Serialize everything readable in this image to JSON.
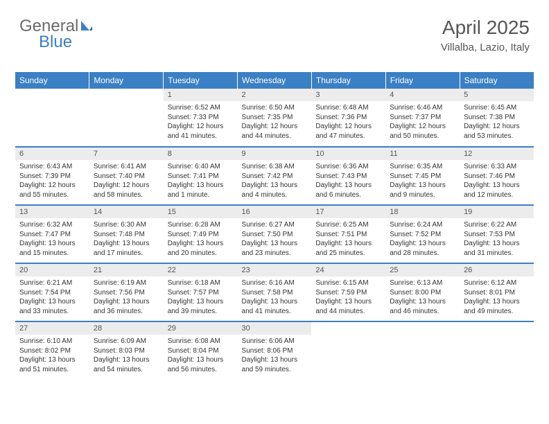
{
  "logo": {
    "text1": "General",
    "text2": "Blue"
  },
  "header": {
    "month": "April 2025",
    "location": "Villalba, Lazio, Italy"
  },
  "colors": {
    "header_bg": "#3b7fc4",
    "header_text": "#ffffff",
    "daynum_bg": "#ececec",
    "border": "#3b7fc4",
    "logo_gray": "#6b6b6b",
    "logo_blue": "#3b7fc4"
  },
  "dayNames": [
    "Sunday",
    "Monday",
    "Tuesday",
    "Wednesday",
    "Thursday",
    "Friday",
    "Saturday"
  ],
  "weeks": [
    [
      null,
      null,
      {
        "n": "1",
        "sr": "6:52 AM",
        "ss": "7:33 PM",
        "dl": "12 hours and 41 minutes."
      },
      {
        "n": "2",
        "sr": "6:50 AM",
        "ss": "7:35 PM",
        "dl": "12 hours and 44 minutes."
      },
      {
        "n": "3",
        "sr": "6:48 AM",
        "ss": "7:36 PM",
        "dl": "12 hours and 47 minutes."
      },
      {
        "n": "4",
        "sr": "6:46 AM",
        "ss": "7:37 PM",
        "dl": "12 hours and 50 minutes."
      },
      {
        "n": "5",
        "sr": "6:45 AM",
        "ss": "7:38 PM",
        "dl": "12 hours and 53 minutes."
      }
    ],
    [
      {
        "n": "6",
        "sr": "6:43 AM",
        "ss": "7:39 PM",
        "dl": "12 hours and 55 minutes."
      },
      {
        "n": "7",
        "sr": "6:41 AM",
        "ss": "7:40 PM",
        "dl": "12 hours and 58 minutes."
      },
      {
        "n": "8",
        "sr": "6:40 AM",
        "ss": "7:41 PM",
        "dl": "13 hours and 1 minute."
      },
      {
        "n": "9",
        "sr": "6:38 AM",
        "ss": "7:42 PM",
        "dl": "13 hours and 4 minutes."
      },
      {
        "n": "10",
        "sr": "6:36 AM",
        "ss": "7:43 PM",
        "dl": "13 hours and 6 minutes."
      },
      {
        "n": "11",
        "sr": "6:35 AM",
        "ss": "7:45 PM",
        "dl": "13 hours and 9 minutes."
      },
      {
        "n": "12",
        "sr": "6:33 AM",
        "ss": "7:46 PM",
        "dl": "13 hours and 12 minutes."
      }
    ],
    [
      {
        "n": "13",
        "sr": "6:32 AM",
        "ss": "7:47 PM",
        "dl": "13 hours and 15 minutes."
      },
      {
        "n": "14",
        "sr": "6:30 AM",
        "ss": "7:48 PM",
        "dl": "13 hours and 17 minutes."
      },
      {
        "n": "15",
        "sr": "6:28 AM",
        "ss": "7:49 PM",
        "dl": "13 hours and 20 minutes."
      },
      {
        "n": "16",
        "sr": "6:27 AM",
        "ss": "7:50 PM",
        "dl": "13 hours and 23 minutes."
      },
      {
        "n": "17",
        "sr": "6:25 AM",
        "ss": "7:51 PM",
        "dl": "13 hours and 25 minutes."
      },
      {
        "n": "18",
        "sr": "6:24 AM",
        "ss": "7:52 PM",
        "dl": "13 hours and 28 minutes."
      },
      {
        "n": "19",
        "sr": "6:22 AM",
        "ss": "7:53 PM",
        "dl": "13 hours and 31 minutes."
      }
    ],
    [
      {
        "n": "20",
        "sr": "6:21 AM",
        "ss": "7:54 PM",
        "dl": "13 hours and 33 minutes."
      },
      {
        "n": "21",
        "sr": "6:19 AM",
        "ss": "7:56 PM",
        "dl": "13 hours and 36 minutes."
      },
      {
        "n": "22",
        "sr": "6:18 AM",
        "ss": "7:57 PM",
        "dl": "13 hours and 39 minutes."
      },
      {
        "n": "23",
        "sr": "6:16 AM",
        "ss": "7:58 PM",
        "dl": "13 hours and 41 minutes."
      },
      {
        "n": "24",
        "sr": "6:15 AM",
        "ss": "7:59 PM",
        "dl": "13 hours and 44 minutes."
      },
      {
        "n": "25",
        "sr": "6:13 AM",
        "ss": "8:00 PM",
        "dl": "13 hours and 46 minutes."
      },
      {
        "n": "26",
        "sr": "6:12 AM",
        "ss": "8:01 PM",
        "dl": "13 hours and 49 minutes."
      }
    ],
    [
      {
        "n": "27",
        "sr": "6:10 AM",
        "ss": "8:02 PM",
        "dl": "13 hours and 51 minutes."
      },
      {
        "n": "28",
        "sr": "6:09 AM",
        "ss": "8:03 PM",
        "dl": "13 hours and 54 minutes."
      },
      {
        "n": "29",
        "sr": "6:08 AM",
        "ss": "8:04 PM",
        "dl": "13 hours and 56 minutes."
      },
      {
        "n": "30",
        "sr": "6:06 AM",
        "ss": "8:06 PM",
        "dl": "13 hours and 59 minutes."
      },
      null,
      null,
      null
    ]
  ],
  "labels": {
    "sunrise": "Sunrise:",
    "sunset": "Sunset:",
    "daylight": "Daylight:"
  }
}
